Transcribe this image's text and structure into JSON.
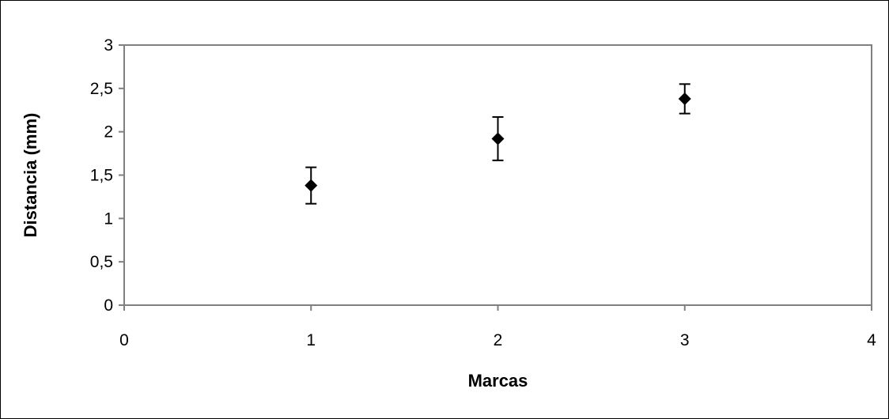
{
  "chart_data": {
    "type": "scatter",
    "title": "",
    "xlabel": "Marcas",
    "ylabel": "Distancia (mm)",
    "xlim": [
      0,
      4
    ],
    "ylim": [
      0,
      3
    ],
    "x_ticks": [
      "0",
      "1",
      "2",
      "3",
      "4"
    ],
    "y_ticks": [
      "0",
      "0,5",
      "1",
      "1,5",
      "2",
      "2,5",
      "3"
    ],
    "grid": false,
    "legend": "none",
    "marker": "diamond",
    "colors": {
      "marker": "#000000",
      "axis": "#808080",
      "background": "#ffffff"
    },
    "series": [
      {
        "x": [
          1,
          2,
          3
        ],
        "y": [
          1.38,
          1.92,
          2.38
        ],
        "error_low": [
          1.17,
          1.67,
          2.21
        ],
        "error_high": [
          1.59,
          2.17,
          2.55
        ]
      }
    ]
  }
}
